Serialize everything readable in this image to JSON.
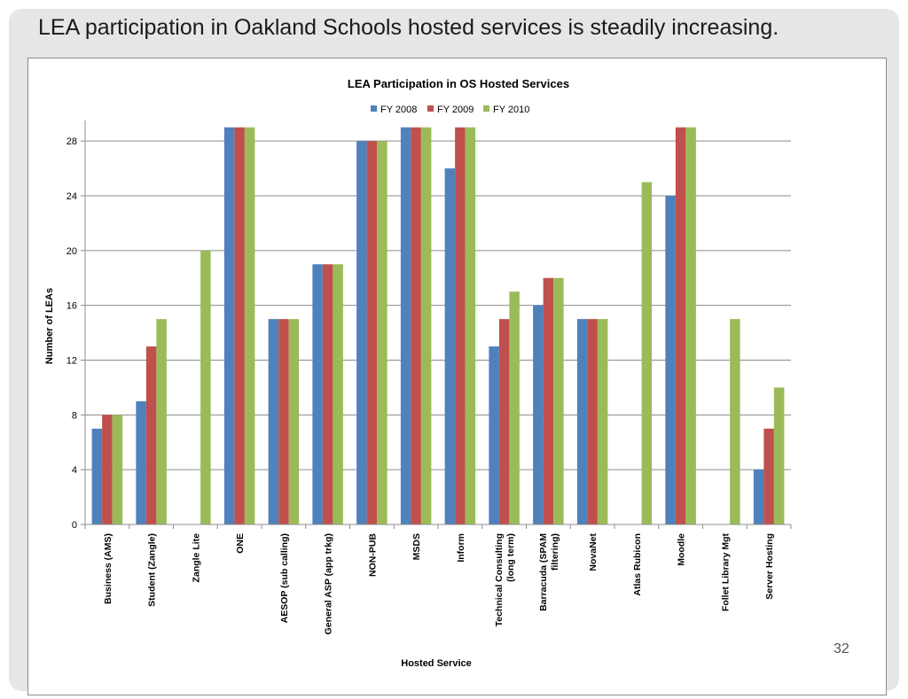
{
  "slide": {
    "title": "LEA participation in Oakland Schools hosted services is steadily increasing.",
    "page_number": "32"
  },
  "chart_data": {
    "type": "bar",
    "title": "LEA Participation in OS Hosted Services",
    "xlabel": "Hosted Service",
    "ylabel": "Number of LEAs",
    "ylim": [
      0,
      29.5
    ],
    "yticks": [
      0,
      4,
      8,
      12,
      16,
      20,
      24,
      28
    ],
    "grid": true,
    "legend_position": "top",
    "categories": [
      "Business (AMS)",
      "Student (Zangle)",
      "Zangle Lite",
      "ONE",
      "AESOP (sub calling)",
      "General ASP (app trkg)",
      "NON-PUB",
      "MSDS",
      "Inform",
      "Technical Consulting (long term)",
      "Barracuda (SPAM filtering)",
      "NovaNet",
      "Atlas Rubicon",
      "Moodle",
      "Follet Library Mgt",
      "Server Hosting"
    ],
    "category_lines": [
      [
        "Business (AMS)"
      ],
      [
        "Student (Zangle)"
      ],
      [
        "Zangle Lite"
      ],
      [
        "ONE"
      ],
      [
        "AESOP (sub calling)"
      ],
      [
        "General ASP (app trkg)"
      ],
      [
        "NON-PUB"
      ],
      [
        "MSDS"
      ],
      [
        "Inform"
      ],
      [
        "Technical Consulting",
        "(long term)"
      ],
      [
        "Barracuda (SPAM",
        "filtering)"
      ],
      [
        "NovaNet"
      ],
      [
        "Atlas Rubicon"
      ],
      [
        "Moodle"
      ],
      [
        "Follet Library Mgt"
      ],
      [
        "Server Hosting"
      ]
    ],
    "series": [
      {
        "name": "FY 2008",
        "color": "#4f81bd",
        "values": [
          7,
          9,
          0,
          29,
          15,
          19,
          28,
          29,
          26,
          13,
          16,
          15,
          0,
          24,
          0,
          4
        ]
      },
      {
        "name": "FY 2009",
        "color": "#c0504d",
        "values": [
          8,
          13,
          0,
          29,
          15,
          19,
          28,
          29,
          29,
          15,
          18,
          15,
          0,
          29,
          0,
          7
        ]
      },
      {
        "name": "FY 2010",
        "color": "#9bbb59",
        "values": [
          8,
          15,
          20,
          29,
          15,
          19,
          28,
          29,
          29,
          17,
          18,
          15,
          25,
          29,
          15,
          10
        ]
      }
    ]
  }
}
